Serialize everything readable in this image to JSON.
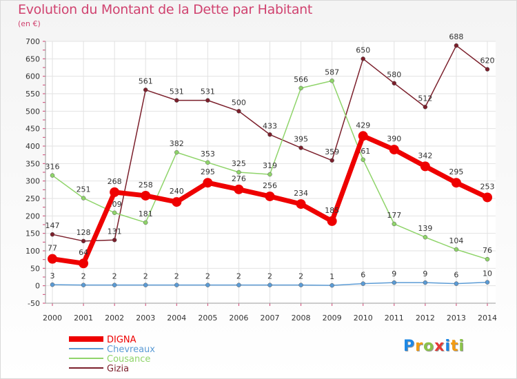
{
  "title": "Evolution du Montant de la Dette par Habitant",
  "unit_label": "(en €)",
  "logo": {
    "text": "Proxiti",
    "letters": [
      "P",
      "r",
      "o",
      "x",
      "i",
      "t",
      "i"
    ],
    "colors": [
      "#1e88e5",
      "#f39c12",
      "#8bc34a",
      "#e53935",
      "#1e88e5",
      "#f39c12",
      "#8bc34a"
    ]
  },
  "chart_data": {
    "type": "line",
    "x": [
      "2000",
      "2001",
      "2002",
      "2003",
      "2004",
      "2005",
      "2006",
      "2007",
      "2008",
      "2009",
      "2010",
      "2011",
      "2012",
      "2013",
      "2014"
    ],
    "ylim": [
      -50,
      700
    ],
    "yticks": [
      "-50",
      "0",
      "50",
      "100",
      "150",
      "200",
      "250",
      "300",
      "350",
      "400",
      "450",
      "500",
      "550",
      "600",
      "650",
      "700"
    ],
    "grid": true,
    "legend_position": "bottom-left",
    "series": [
      {
        "name": "Gizia",
        "color": "#7b1f2b",
        "values": [
          147,
          128,
          131,
          561,
          531,
          531,
          500,
          433,
          395,
          359,
          650,
          580,
          512,
          688,
          620
        ],
        "labels": [
          "147",
          "128",
          "131",
          "561",
          "531",
          "531",
          "500",
          "433",
          "395",
          "359",
          "650",
          "580",
          "512",
          "688",
          "620"
        ]
      },
      {
        "name": "Cousance",
        "color": "#8fd46a",
        "values": [
          316,
          251,
          209,
          181,
          382,
          353,
          325,
          319,
          566,
          587,
          361,
          177,
          139,
          104,
          76
        ],
        "labels": [
          "316",
          "251",
          "209",
          "181",
          "382",
          "353",
          "325",
          "319",
          "566",
          "587",
          "361",
          "177",
          "139",
          "104",
          "76"
        ]
      },
      {
        "name": "Chevreaux",
        "color": "#5b9bd5",
        "values": [
          3,
          2,
          2,
          2,
          2,
          2,
          2,
          2,
          2,
          1,
          6,
          9,
          9,
          6,
          10
        ],
        "labels": [
          "3",
          "2",
          "2",
          "2",
          "2",
          "2",
          "2",
          "2",
          "2",
          "1",
          "6",
          "9",
          "9",
          "6",
          "10"
        ]
      },
      {
        "name": "DIGNA",
        "color": "#ee0000",
        "values": [
          77,
          64,
          268,
          258,
          240,
          295,
          276,
          256,
          234,
          185,
          429,
          390,
          342,
          295,
          253
        ],
        "labels": [
          "77",
          "64",
          "268",
          "258",
          "240",
          "295",
          "276",
          "256",
          "234",
          "185",
          "429",
          "390",
          "342",
          "295",
          "253"
        ]
      }
    ],
    "legend": [
      {
        "name": "DIGNA",
        "color": "#ee0000"
      },
      {
        "name": "Chevreaux",
        "color": "#5b9bd5"
      },
      {
        "name": "Cousance",
        "color": "#8fd46a"
      },
      {
        "name": "Gizia",
        "color": "#7b1f2b"
      }
    ]
  }
}
